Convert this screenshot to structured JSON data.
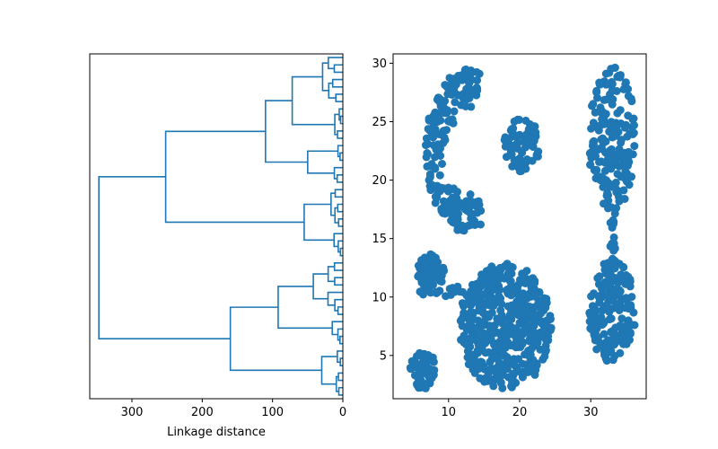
{
  "figure": {
    "background": "#ffffff",
    "accent": "#1f77b4"
  },
  "chart_data": [
    {
      "type": "dendrogram",
      "xlabel": "Linkage distance",
      "ylabel": "",
      "title": "",
      "xlim": [
        360,
        0
      ],
      "xticks": [
        300,
        200,
        100,
        0
      ],
      "orientation": "left",
      "color": "#1f77b4",
      "merge_heights": {
        "root": 347,
        "upper": 252,
        "upper_a": 110,
        "upper_a1": 72,
        "upper_a1_top": 44,
        "upper_a2": 50,
        "upper_b": 55,
        "lower": 160,
        "lower_a": 92,
        "lower_a1": 42,
        "lower_b": 30
      }
    },
    {
      "type": "scatter",
      "title": "",
      "xlabel": "",
      "ylabel": "",
      "xlim": [
        2.2,
        37.8
      ],
      "ylim": [
        1.3,
        30.8
      ],
      "xticks": [
        10,
        20,
        30
      ],
      "yticks": [
        5,
        10,
        15,
        20,
        25,
        30
      ],
      "marker_color": "#1f77b4",
      "clusters": [
        {
          "shape": "arc",
          "center": [
            12.5,
            22.5
          ],
          "outer_radius": 7,
          "inner_radius": 3.2,
          "angle_range_deg": [
            70,
            300
          ],
          "n": 220,
          "seed": 11
        },
        {
          "shape": "ellipse",
          "center": [
            20.3,
            23.0
          ],
          "radii": [
            2.6,
            2.3
          ],
          "n": 70,
          "seed": 12
        },
        {
          "shape": "ellipse",
          "center": [
            33.0,
            23.5
          ],
          "radii": [
            3.3,
            6.2
          ],
          "n": 180,
          "seed": 13
        },
        {
          "shape": "strip",
          "x_range": [
            32.7,
            33.5
          ],
          "y_range": [
            12.5,
            18.0
          ],
          "n": 20,
          "seed": 14
        },
        {
          "shape": "ellipse",
          "center": [
            33.0,
            8.7
          ],
          "radii": [
            3.3,
            4.4
          ],
          "n": 170,
          "seed": 15
        },
        {
          "shape": "ellipse",
          "center": [
            7.5,
            11.8
          ],
          "radii": [
            2.2,
            1.9
          ],
          "n": 60,
          "seed": 16
        },
        {
          "shape": "strip",
          "x_range": [
            9.5,
            12.0
          ],
          "y_range": [
            10.0,
            11.0
          ],
          "n": 8,
          "seed": 17
        },
        {
          "shape": "ellipse",
          "center": [
            18.0,
            7.5
          ],
          "radii": [
            6.5,
            5.4
          ],
          "n": 480,
          "seed": 18
        },
        {
          "shape": "ellipse",
          "center": [
            6.5,
            3.7
          ],
          "radii": [
            2.0,
            1.6
          ],
          "n": 55,
          "seed": 19
        }
      ]
    }
  ]
}
